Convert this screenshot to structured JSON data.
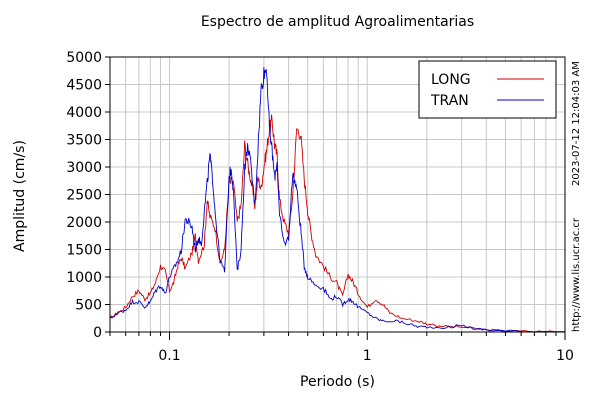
{
  "chart_data": {
    "type": "line",
    "title": "Espectro de amplitud Agroalimentarias",
    "xlabel": "Periodo (s)",
    "ylabel": "Amplitud (cm/s)",
    "x_scale": "log",
    "xlim": [
      0.05,
      10
    ],
    "ylim": [
      0,
      5000
    ],
    "x_ticks": [
      {
        "value": 0.1,
        "label": "0.1"
      },
      {
        "value": 1,
        "label": "1"
      },
      {
        "value": 10,
        "label": "10"
      }
    ],
    "y_ticks": [
      0,
      500,
      1000,
      1500,
      2000,
      2500,
      3000,
      3500,
      4000,
      4500,
      5000
    ],
    "grid": true,
    "legend_position": "top-right",
    "series": [
      {
        "name": "LONG",
        "color": "#cc0000",
        "points": [
          [
            0.05,
            250
          ],
          [
            0.055,
            350
          ],
          [
            0.06,
            450
          ],
          [
            0.065,
            650
          ],
          [
            0.07,
            750
          ],
          [
            0.075,
            600
          ],
          [
            0.08,
            700
          ],
          [
            0.085,
            900
          ],
          [
            0.09,
            1200
          ],
          [
            0.095,
            1100
          ],
          [
            0.1,
            750
          ],
          [
            0.105,
            900
          ],
          [
            0.11,
            1200
          ],
          [
            0.115,
            1350
          ],
          [
            0.12,
            1150
          ],
          [
            0.13,
            1450
          ],
          [
            0.135,
            1750
          ],
          [
            0.14,
            1300
          ],
          [
            0.15,
            1600
          ],
          [
            0.155,
            2400
          ],
          [
            0.16,
            2100
          ],
          [
            0.17,
            1900
          ],
          [
            0.18,
            1250
          ],
          [
            0.19,
            1500
          ],
          [
            0.2,
            2700
          ],
          [
            0.21,
            2750
          ],
          [
            0.22,
            2000
          ],
          [
            0.23,
            2300
          ],
          [
            0.24,
            3400
          ],
          [
            0.25,
            3000
          ],
          [
            0.26,
            2700
          ],
          [
            0.27,
            2300
          ],
          [
            0.28,
            2800
          ],
          [
            0.29,
            2600
          ],
          [
            0.3,
            3000
          ],
          [
            0.31,
            3300
          ],
          [
            0.32,
            3700
          ],
          [
            0.33,
            3850
          ],
          [
            0.34,
            3400
          ],
          [
            0.35,
            3200
          ],
          [
            0.36,
            2400
          ],
          [
            0.38,
            2000
          ],
          [
            0.4,
            1800
          ],
          [
            0.42,
            2500
          ],
          [
            0.44,
            3700
          ],
          [
            0.46,
            3600
          ],
          [
            0.48,
            2800
          ],
          [
            0.5,
            2200
          ],
          [
            0.52,
            1800
          ],
          [
            0.55,
            1400
          ],
          [
            0.6,
            1200
          ],
          [
            0.65,
            1000
          ],
          [
            0.7,
            900
          ],
          [
            0.75,
            650
          ],
          [
            0.8,
            1050
          ],
          [
            0.85,
            900
          ],
          [
            0.9,
            700
          ],
          [
            1.0,
            450
          ],
          [
            1.1,
            600
          ],
          [
            1.2,
            500
          ],
          [
            1.3,
            350
          ],
          [
            1.5,
            250
          ],
          [
            1.8,
            200
          ],
          [
            2.0,
            150
          ],
          [
            2.5,
            100
          ],
          [
            3.0,
            90
          ],
          [
            4.0,
            40
          ],
          [
            5.0,
            20
          ],
          [
            7.0,
            10
          ],
          [
            10.0,
            5
          ]
        ]
      },
      {
        "name": "TRAN",
        "color": "#0000cc",
        "points": [
          [
            0.05,
            250
          ],
          [
            0.055,
            350
          ],
          [
            0.06,
            400
          ],
          [
            0.065,
            550
          ],
          [
            0.07,
            550
          ],
          [
            0.075,
            450
          ],
          [
            0.08,
            550
          ],
          [
            0.085,
            750
          ],
          [
            0.09,
            850
          ],
          [
            0.095,
            700
          ],
          [
            0.1,
            1000
          ],
          [
            0.105,
            1150
          ],
          [
            0.11,
            1300
          ],
          [
            0.115,
            1500
          ],
          [
            0.12,
            2050
          ],
          [
            0.125,
            2000
          ],
          [
            0.13,
            1900
          ],
          [
            0.135,
            1500
          ],
          [
            0.14,
            1700
          ],
          [
            0.145,
            1600
          ],
          [
            0.15,
            2200
          ],
          [
            0.155,
            2700
          ],
          [
            0.16,
            3200
          ],
          [
            0.165,
            2800
          ],
          [
            0.17,
            2200
          ],
          [
            0.18,
            1300
          ],
          [
            0.19,
            1100
          ],
          [
            0.2,
            2800
          ],
          [
            0.205,
            3000
          ],
          [
            0.21,
            2600
          ],
          [
            0.22,
            1100
          ],
          [
            0.23,
            1500
          ],
          [
            0.24,
            3000
          ],
          [
            0.25,
            3400
          ],
          [
            0.26,
            2900
          ],
          [
            0.27,
            2300
          ],
          [
            0.28,
            3300
          ],
          [
            0.29,
            4400
          ],
          [
            0.3,
            4700
          ],
          [
            0.31,
            4800
          ],
          [
            0.32,
            3700
          ],
          [
            0.33,
            3300
          ],
          [
            0.34,
            2800
          ],
          [
            0.35,
            3100
          ],
          [
            0.36,
            2100
          ],
          [
            0.38,
            1600
          ],
          [
            0.4,
            1700
          ],
          [
            0.42,
            2900
          ],
          [
            0.44,
            2600
          ],
          [
            0.46,
            1900
          ],
          [
            0.48,
            1200
          ],
          [
            0.5,
            1000
          ],
          [
            0.55,
            850
          ],
          [
            0.6,
            800
          ],
          [
            0.65,
            600
          ],
          [
            0.7,
            650
          ],
          [
            0.75,
            500
          ],
          [
            0.8,
            600
          ],
          [
            0.85,
            550
          ],
          [
            0.9,
            450
          ],
          [
            1.0,
            350
          ],
          [
            1.1,
            250
          ],
          [
            1.2,
            200
          ],
          [
            1.4,
            200
          ],
          [
            1.6,
            150
          ],
          [
            1.8,
            100
          ],
          [
            2.0,
            90
          ],
          [
            2.5,
            80
          ],
          [
            3.0,
            120
          ],
          [
            3.5,
            60
          ],
          [
            4.0,
            40
          ],
          [
            5.0,
            20
          ],
          [
            7.0,
            10
          ],
          [
            10.0,
            5
          ]
        ]
      }
    ]
  },
  "stamps": {
    "timestamp": "2023-07-12 12:04:03 AM",
    "url": "http://www.lis.ucr.ac.cr"
  }
}
